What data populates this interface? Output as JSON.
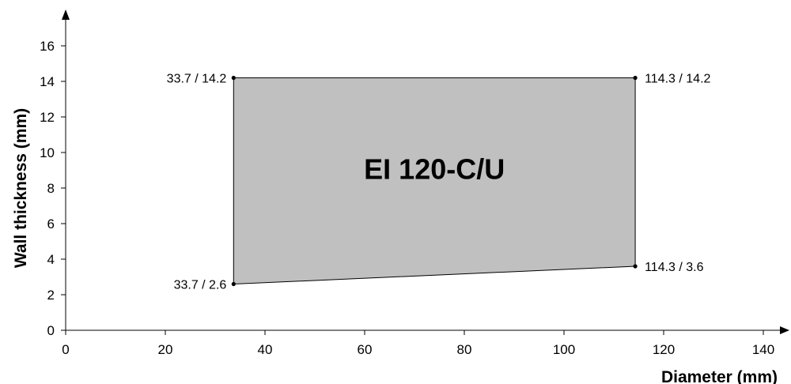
{
  "chart_data": {
    "type": "area",
    "xlabel": "Diameter (mm)",
    "ylabel": "Wall thickness (mm)",
    "xlim": [
      0,
      140
    ],
    "ylim": [
      0,
      17.5
    ],
    "x_ticks": [
      0,
      20,
      40,
      60,
      80,
      100,
      120,
      140
    ],
    "y_ticks": [
      0,
      2,
      4,
      6,
      8,
      10,
      12,
      14,
      16
    ],
    "grid": false,
    "region": {
      "label": "EI 120-C/U",
      "fill_color": "#c0c0c0",
      "points": [
        {
          "x": 33.7,
          "y": 14.2,
          "label": "33.7 / 14.2"
        },
        {
          "x": 114.3,
          "y": 14.2,
          "label": "114.3 / 14.2"
        },
        {
          "x": 114.3,
          "y": 3.6,
          "label": "114.3 / 3.6"
        },
        {
          "x": 33.7,
          "y": 2.6,
          "label": "33.7 / 2.6"
        }
      ]
    }
  }
}
